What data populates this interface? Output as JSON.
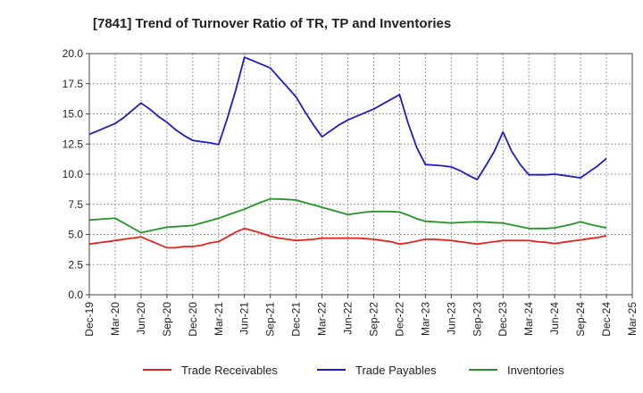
{
  "chart_data": {
    "type": "line",
    "title": "[7841]  Trend of Turnover Ratio of TR, TP and Inventories",
    "xlabel": "",
    "ylabel": "",
    "ylim": [
      0,
      20
    ],
    "yticks": [
      "0.0",
      "2.5",
      "5.0",
      "7.5",
      "10.0",
      "12.5",
      "15.0",
      "17.5",
      "20.0"
    ],
    "x_tick_labels": [
      "Dec-19",
      "Mar-20",
      "Jun-20",
      "Sep-20",
      "Dec-20",
      "Mar-21",
      "Jun-21",
      "Sep-21",
      "Dec-21",
      "Mar-22",
      "Jun-22",
      "Sep-22",
      "Dec-22",
      "Mar-23",
      "Jun-23",
      "Sep-23",
      "Dec-23",
      "Mar-24",
      "Jun-24",
      "Sep-24",
      "Dec-24",
      "Mar-25"
    ],
    "x": [
      "2019-12",
      "2020-01",
      "2020-02",
      "2020-03",
      "2020-04",
      "2020-05",
      "2020-06",
      "2020-07",
      "2020-08",
      "2020-09",
      "2020-10",
      "2020-11",
      "2020-12",
      "2021-01",
      "2021-02",
      "2021-03",
      "2021-04",
      "2021-05",
      "2021-06",
      "2021-07",
      "2021-08",
      "2021-09",
      "2021-10",
      "2021-11",
      "2021-12",
      "2022-01",
      "2022-02",
      "2022-03",
      "2022-04",
      "2022-05",
      "2022-06",
      "2022-07",
      "2022-08",
      "2022-09",
      "2022-10",
      "2022-11",
      "2022-12",
      "2023-01",
      "2023-02",
      "2023-03",
      "2023-04",
      "2023-05",
      "2023-06",
      "2023-07",
      "2023-08",
      "2023-09",
      "2023-10",
      "2023-11",
      "2023-12",
      "2024-01",
      "2024-02",
      "2024-03",
      "2024-04",
      "2024-05",
      "2024-06",
      "2024-07",
      "2024-08",
      "2024-09",
      "2024-10",
      "2024-11",
      "2024-12"
    ],
    "grid": true,
    "legend_position": "bottom",
    "series": [
      {
        "name": "Trade Receivables",
        "color": "#e8221b",
        "values": [
          4.2,
          4.3,
          4.4,
          4.5,
          4.6,
          4.7,
          4.8,
          4.5,
          4.2,
          3.9,
          3.9,
          4.0,
          4.0,
          4.1,
          4.3,
          4.4,
          4.8,
          5.2,
          5.5,
          5.3,
          5.1,
          4.85,
          4.7,
          4.6,
          4.5,
          4.55,
          4.6,
          4.7,
          4.7,
          4.7,
          4.7,
          4.7,
          4.65,
          4.6,
          4.5,
          4.4,
          4.2,
          4.3,
          4.45,
          4.6,
          4.6,
          4.55,
          4.5,
          4.4,
          4.3,
          4.2,
          4.3,
          4.4,
          4.5,
          4.5,
          4.5,
          4.5,
          4.4,
          4.35,
          4.25,
          4.35,
          4.45,
          4.55,
          4.65,
          4.75,
          4.9
        ]
      },
      {
        "name": "Trade Payables",
        "color": "#1c1ccc",
        "values": [
          13.3,
          13.6,
          13.9,
          14.2,
          14.7,
          15.3,
          15.9,
          15.4,
          14.8,
          14.3,
          13.7,
          13.2,
          12.8,
          12.7,
          12.6,
          12.45,
          14.6,
          17.0,
          19.7,
          19.4,
          19.1,
          18.8,
          18.0,
          17.2,
          16.4,
          15.2,
          14.1,
          13.1,
          13.6,
          14.1,
          14.5,
          14.8,
          15.1,
          15.4,
          15.8,
          16.2,
          16.6,
          14.2,
          12.2,
          10.8,
          10.75,
          10.7,
          10.6,
          10.3,
          9.9,
          9.55,
          10.7,
          11.9,
          13.5,
          11.9,
          10.8,
          9.95,
          9.95,
          9.95,
          10.0,
          9.9,
          9.8,
          9.7,
          10.2,
          10.7,
          11.3
        ]
      },
      {
        "name": "Inventories",
        "color": "#239428",
        "values": [
          6.2,
          6.25,
          6.3,
          6.35,
          5.95,
          5.55,
          5.15,
          5.3,
          5.45,
          5.6,
          5.65,
          5.7,
          5.75,
          5.95,
          6.15,
          6.35,
          6.6,
          6.85,
          7.1,
          7.4,
          7.7,
          7.95,
          7.93,
          7.9,
          7.85,
          7.65,
          7.45,
          7.25,
          7.05,
          6.85,
          6.65,
          6.75,
          6.85,
          6.9,
          6.9,
          6.9,
          6.85,
          6.6,
          6.3,
          6.1,
          6.05,
          6.0,
          5.95,
          6.0,
          6.03,
          6.05,
          6.02,
          5.98,
          5.95,
          5.8,
          5.65,
          5.5,
          5.5,
          5.5,
          5.55,
          5.7,
          5.85,
          6.05,
          5.85,
          5.7,
          5.55
        ]
      }
    ]
  }
}
